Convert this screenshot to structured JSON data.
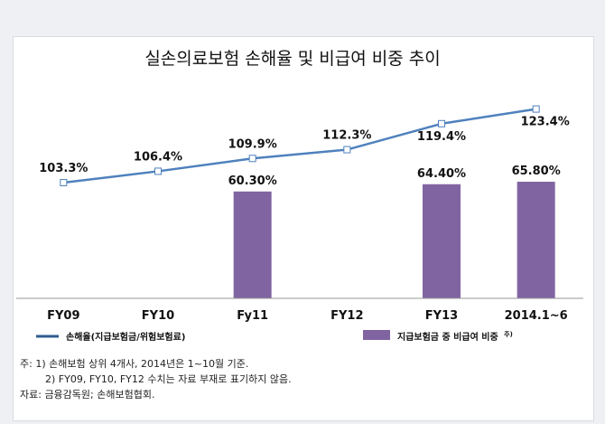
{
  "chart_data": {
    "type": "bar+line",
    "title": "실손의료보험 손해율 및 비급여 비중 추이",
    "categories": [
      "FY09",
      "FY10",
      "Fy11",
      "FY12",
      "FY13",
      "2014.1~6"
    ],
    "line_series": {
      "name": "손해율(지급보험금/위험보험료)",
      "values": [
        103.3,
        106.4,
        109.9,
        112.3,
        119.4,
        123.4
      ],
      "labels": [
        "103.3%",
        "106.4%",
        "109.9%",
        "112.3%",
        "119.4%",
        "123.4%"
      ],
      "color": "#4f81bd"
    },
    "bar_series": {
      "name": "지급보험금 중 비급여 비중",
      "name_suffix": "주)",
      "values": [
        null,
        null,
        60.3,
        null,
        64.4,
        65.8
      ],
      "labels": [
        null,
        null,
        "60.30%",
        null,
        "64.40%",
        "65.80%"
      ],
      "color": "#8064a2"
    },
    "legend_position": "bottom",
    "grid": false
  },
  "notes": {
    "line1": "주:  1)  손해보험 상위 4개사, 2014년은 1~10월 기준.",
    "line2": "2)  FY09,  FY10,  FY12 수치는 자료 부재로 표기하지 않음.",
    "source": "자료:  금융감독원;  손해보험협회."
  },
  "colors": {
    "axis": "#999999",
    "marker_fill": "#ffffff"
  }
}
